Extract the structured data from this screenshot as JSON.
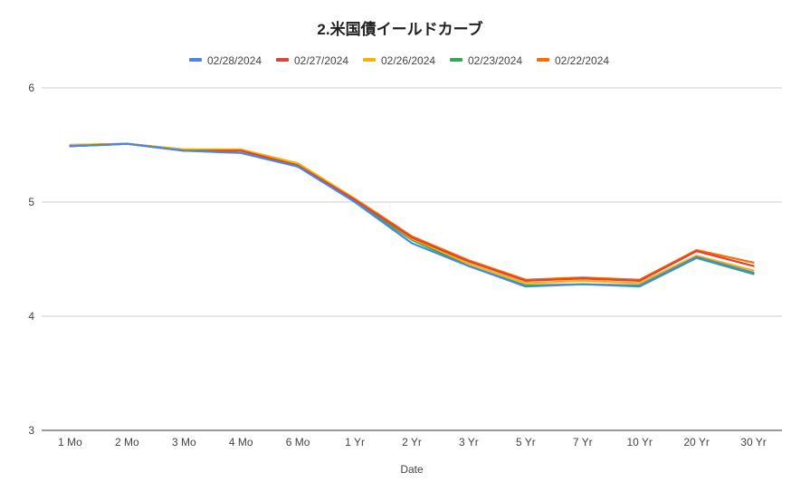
{
  "chart_data": {
    "type": "line",
    "title": "2.米国債イールドカーブ",
    "xlabel": "Date",
    "ylabel": "",
    "ylim": [
      3,
      6
    ],
    "yticks": [
      "3",
      "4",
      "5",
      "6"
    ],
    "grid": true,
    "legend_position": "top",
    "categories": [
      "1 Mo",
      "2 Mo",
      "3 Mo",
      "4 Mo",
      "6 Mo",
      "1 Yr",
      "2 Yr",
      "3 Yr",
      "5 Yr",
      "7 Yr",
      "10 Yr",
      "20 Yr",
      "30 Yr"
    ],
    "series": [
      {
        "name": "02/28/2024",
        "color": "#4a86e8",
        "values": [
          5.49,
          5.51,
          5.45,
          5.43,
          5.31,
          5.0,
          4.64,
          4.44,
          4.26,
          4.28,
          4.27,
          4.52,
          4.38
        ]
      },
      {
        "name": "02/27/2024",
        "color": "#db4437",
        "values": [
          5.49,
          5.51,
          5.45,
          5.45,
          5.32,
          5.02,
          4.69,
          4.48,
          4.31,
          4.33,
          4.31,
          4.57,
          4.44
        ]
      },
      {
        "name": "02/26/2024",
        "color": "#f4b400",
        "values": [
          5.5,
          5.51,
          5.46,
          5.46,
          5.34,
          5.03,
          4.68,
          4.46,
          4.29,
          4.31,
          4.29,
          4.53,
          4.4
        ]
      },
      {
        "name": "02/23/2024",
        "color": "#34a853",
        "values": [
          5.49,
          5.51,
          5.46,
          5.46,
          5.33,
          5.0,
          4.67,
          4.44,
          4.27,
          4.28,
          4.26,
          4.51,
          4.37
        ]
      },
      {
        "name": "02/22/2024",
        "color": "#ff6d01",
        "values": [
          5.5,
          5.51,
          5.45,
          5.45,
          5.32,
          5.03,
          4.7,
          4.49,
          4.32,
          4.34,
          4.32,
          4.58,
          4.47
        ]
      }
    ]
  }
}
